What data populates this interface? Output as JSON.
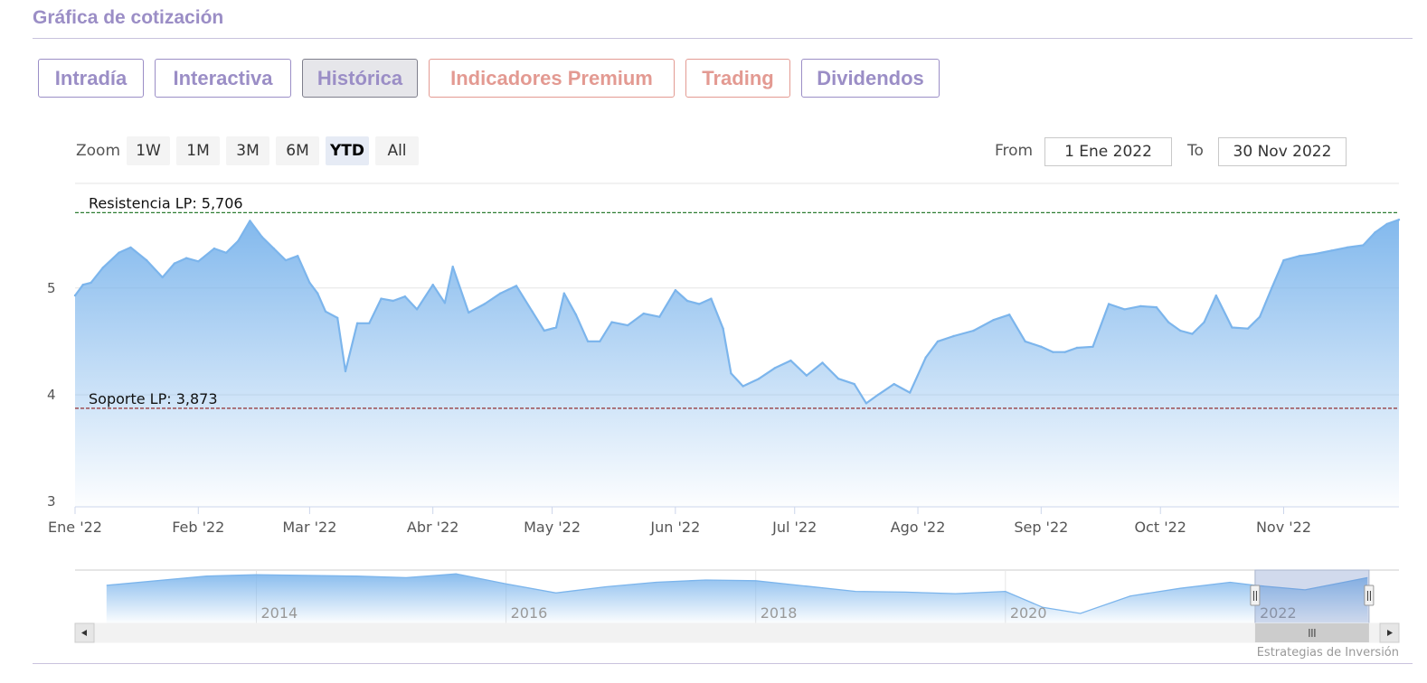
{
  "section": {
    "title": "Gráfica de cotización"
  },
  "tabs": [
    {
      "label": "Intradía",
      "active": false,
      "premium": false
    },
    {
      "label": "Interactiva",
      "active": false,
      "premium": false
    },
    {
      "label": "Histórica",
      "active": true,
      "premium": false
    },
    {
      "label": "Indicadores Premium",
      "active": false,
      "premium": true
    },
    {
      "label": "Trading",
      "active": false,
      "premium": true
    },
    {
      "label": "Dividendos",
      "active": false,
      "premium": false
    }
  ],
  "zoom": {
    "label": "Zoom",
    "buttons": [
      {
        "label": "1W",
        "active": false
      },
      {
        "label": "1M",
        "active": false
      },
      {
        "label": "3M",
        "active": false
      },
      {
        "label": "6M",
        "active": false
      },
      {
        "label": "YTD",
        "active": true
      },
      {
        "label": "All",
        "active": false
      }
    ]
  },
  "range": {
    "from_label": "From",
    "from_value": "1 Ene 2022",
    "to_label": "To",
    "to_value": "30 Nov 2022"
  },
  "credit": "Estrategias de Inversión",
  "colors": {
    "accent": "#9b8ec6",
    "premium": "#e39a92",
    "series": "#7cb5ec",
    "resistance": "#2e7d32",
    "support": "#8b1a1a"
  },
  "chart_data": {
    "type": "area",
    "title": "",
    "xlabel": "",
    "ylabel": "",
    "ylim": [
      2.95,
      5.98
    ],
    "xlim": [
      "2022-01-01",
      "2022-11-30"
    ],
    "y_ticks": [
      3,
      4,
      5
    ],
    "x_ticks": [
      {
        "date": "2022-01-01",
        "label": "Ene '22"
      },
      {
        "date": "2022-02-01",
        "label": "Feb '22"
      },
      {
        "date": "2022-03-01",
        "label": "Mar '22"
      },
      {
        "date": "2022-04-01",
        "label": "Abr '22"
      },
      {
        "date": "2022-05-01",
        "label": "May '22"
      },
      {
        "date": "2022-06-01",
        "label": "Jun '22"
      },
      {
        "date": "2022-07-01",
        "label": "Jul '22"
      },
      {
        "date": "2022-08-01",
        "label": "Ago '22"
      },
      {
        "date": "2022-09-01",
        "label": "Sep '22"
      },
      {
        "date": "2022-10-01",
        "label": "Oct '22"
      },
      {
        "date": "2022-11-01",
        "label": "Nov '22"
      }
    ],
    "grid": true,
    "legend": "none",
    "annotations": [
      {
        "label": "Resistencia LP: 5,706",
        "value": 5.706,
        "color": "#2e7d32"
      },
      {
        "label": "Soporte LP: 3,873",
        "value": 3.873,
        "color": "#8b1a1a"
      }
    ],
    "series": [
      {
        "x": [
          "2022-01-01",
          "2022-01-03",
          "2022-01-05",
          "2022-01-08",
          "2022-01-12",
          "2022-01-15",
          "2022-01-19",
          "2022-01-23",
          "2022-01-26",
          "2022-01-29",
          "2022-02-01",
          "2022-02-05",
          "2022-02-08",
          "2022-02-11",
          "2022-02-14",
          "2022-02-17",
          "2022-02-20",
          "2022-02-23",
          "2022-02-26",
          "2022-03-01",
          "2022-03-03",
          "2022-03-05",
          "2022-03-08",
          "2022-03-10",
          "2022-03-13",
          "2022-03-16",
          "2022-03-19",
          "2022-03-22",
          "2022-03-25",
          "2022-03-28",
          "2022-04-01",
          "2022-04-04",
          "2022-04-06",
          "2022-04-10",
          "2022-04-14",
          "2022-04-18",
          "2022-04-22",
          "2022-04-26",
          "2022-04-29",
          "2022-05-02",
          "2022-05-04",
          "2022-05-07",
          "2022-05-10",
          "2022-05-13",
          "2022-05-16",
          "2022-05-20",
          "2022-05-24",
          "2022-05-28",
          "2022-06-01",
          "2022-06-04",
          "2022-06-07",
          "2022-06-10",
          "2022-06-13",
          "2022-06-15",
          "2022-06-18",
          "2022-06-22",
          "2022-06-26",
          "2022-06-30",
          "2022-07-04",
          "2022-07-08",
          "2022-07-12",
          "2022-07-16",
          "2022-07-19",
          "2022-07-22",
          "2022-07-26",
          "2022-07-30",
          "2022-08-03",
          "2022-08-06",
          "2022-08-10",
          "2022-08-15",
          "2022-08-20",
          "2022-08-24",
          "2022-08-28",
          "2022-09-01",
          "2022-09-04",
          "2022-09-07",
          "2022-09-10",
          "2022-09-14",
          "2022-09-18",
          "2022-09-22",
          "2022-09-26",
          "2022-09-30",
          "2022-10-03",
          "2022-10-06",
          "2022-10-09",
          "2022-10-12",
          "2022-10-15",
          "2022-10-19",
          "2022-10-23",
          "2022-10-26",
          "2022-10-29",
          "2022-11-01",
          "2022-11-05",
          "2022-11-09",
          "2022-11-13",
          "2022-11-17",
          "2022-11-21",
          "2022-11-24",
          "2022-11-27",
          "2022-11-30"
        ],
        "values": [
          4.93,
          5.03,
          5.05,
          5.19,
          5.33,
          5.38,
          5.26,
          5.1,
          5.23,
          5.28,
          5.25,
          5.37,
          5.33,
          5.44,
          5.63,
          5.48,
          5.37,
          5.26,
          5.3,
          5.05,
          4.95,
          4.78,
          4.72,
          4.22,
          4.67,
          4.67,
          4.9,
          4.88,
          4.92,
          4.8,
          5.03,
          4.86,
          5.2,
          4.77,
          4.85,
          4.95,
          5.02,
          4.78,
          4.6,
          4.63,
          4.95,
          4.75,
          4.5,
          4.5,
          4.68,
          4.65,
          4.76,
          4.73,
          4.98,
          4.88,
          4.85,
          4.9,
          4.62,
          4.2,
          4.08,
          4.15,
          4.25,
          4.32,
          4.18,
          4.3,
          4.15,
          4.1,
          3.92,
          4.0,
          4.1,
          4.02,
          4.35,
          4.5,
          4.55,
          4.6,
          4.7,
          4.75,
          4.5,
          4.45,
          4.4,
          4.4,
          4.44,
          4.45,
          4.85,
          4.8,
          4.83,
          4.82,
          4.68,
          4.6,
          4.57,
          4.68,
          4.93,
          4.63,
          4.62,
          4.73,
          5.0,
          5.26,
          5.3,
          5.32,
          5.35,
          5.38,
          5.4,
          5.52,
          5.6,
          5.64
        ]
      }
    ],
    "navigator": {
      "x_labels": [
        "2014",
        "2016",
        "2018",
        "2020",
        "2022"
      ],
      "x": [
        2012.8,
        2013.2,
        2013.6,
        2014.0,
        2014.4,
        2014.8,
        2015.2,
        2015.6,
        2016.0,
        2016.4,
        2016.8,
        2017.2,
        2017.6,
        2018.0,
        2018.4,
        2018.8,
        2019.2,
        2019.6,
        2020.0,
        2020.3,
        2020.6,
        2021.0,
        2021.4,
        2021.8,
        2022.0,
        2022.4,
        2022.9
      ],
      "values": [
        5.0,
        5.3,
        5.6,
        5.7,
        5.65,
        5.6,
        5.5,
        5.75,
        5.1,
        4.5,
        4.9,
        5.2,
        5.35,
        5.3,
        4.95,
        4.6,
        4.55,
        4.45,
        4.6,
        3.55,
        3.15,
        4.3,
        4.8,
        5.2,
        5.0,
        4.7,
        5.5
      ],
      "ylim": [
        2.5,
        6.0
      ],
      "xlim": [
        2012.7,
        2023.0
      ],
      "selection": [
        "2022-01-01",
        "2022-11-30"
      ]
    }
  }
}
